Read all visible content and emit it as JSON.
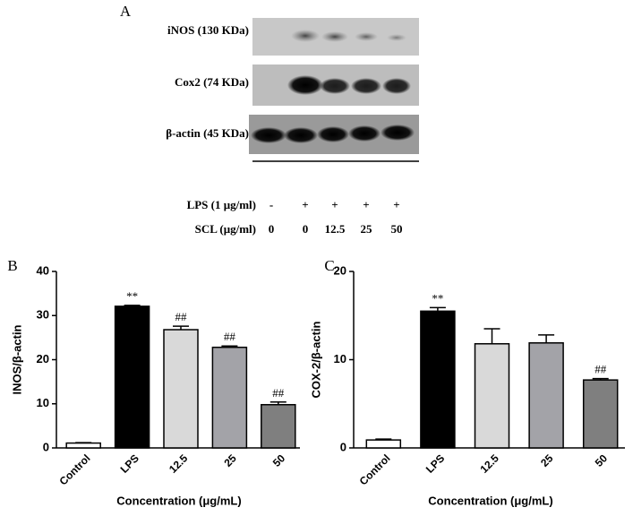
{
  "panel_a": {
    "panel_label": "A",
    "proteins": [
      "iNOS (130 KDa)",
      "Cox2 (74 KDa)",
      "β-actin (45 KDa)"
    ],
    "treatments": [
      {
        "label": "LPS (1 μg/ml)",
        "lanes": [
          "-",
          "+",
          "+",
          "+",
          "+"
        ]
      },
      {
        "label": "SCL (μg/ml)",
        "lanes": [
          0,
          0,
          12.5,
          25,
          50
        ]
      }
    ]
  },
  "chart_data": [
    {
      "type": "bar",
      "panel_label": "B",
      "categories": [
        "Control",
        "LPS",
        "12.5",
        "25",
        "50"
      ],
      "values": [
        1.1,
        32.1,
        26.8,
        22.8,
        9.8
      ],
      "errors": [
        0.1,
        0.2,
        0.8,
        0.3,
        0.6
      ],
      "colors": [
        "#ffffff",
        "#000000",
        "#d9d9d9",
        "#a3a3a8",
        "#7f7f7f"
      ],
      "annotations": [
        null,
        "**",
        "##",
        "##",
        "##"
      ],
      "ylim": [
        0,
        40
      ],
      "yticks": [
        0,
        10,
        20,
        30,
        40
      ],
      "y_label": "INOS/β-actin",
      "x_label": "Concentration (μg/mL)"
    },
    {
      "type": "bar",
      "panel_label": "C",
      "categories": [
        "Control",
        "LPS",
        "12.5",
        "25",
        "50"
      ],
      "values": [
        0.9,
        15.5,
        11.8,
        11.9,
        7.7
      ],
      "errors": [
        0.1,
        0.4,
        1.7,
        0.9,
        0.15
      ],
      "colors": [
        "#ffffff",
        "#000000",
        "#d9d9d9",
        "#a3a3a8",
        "#7f7f7f"
      ],
      "annotations": [
        null,
        "**",
        null,
        null,
        "##"
      ],
      "ylim": [
        0,
        20
      ],
      "yticks": [
        0,
        10,
        20
      ],
      "y_label": "COX-2/β-actin",
      "x_label": "Concentration (μg/mL)"
    }
  ]
}
